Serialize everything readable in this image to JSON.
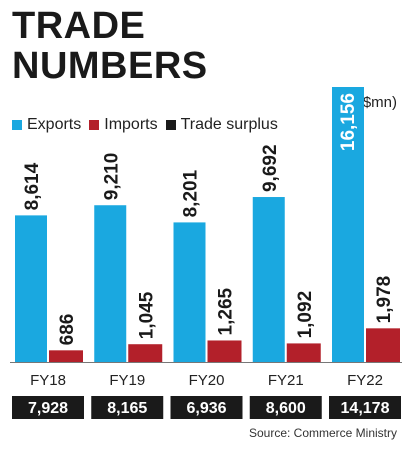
{
  "chart_data": {
    "type": "bar",
    "title": "TRADE NUMBERS",
    "title_lines": [
      "TRADE",
      "NUMBERS"
    ],
    "unit_note": "(In $mn)",
    "categories": [
      "FY18",
      "FY19",
      "FY20",
      "FY21",
      "FY22"
    ],
    "series": [
      {
        "name": "Exports",
        "values": [
          8614,
          9210,
          8201,
          9692,
          16156
        ],
        "labels": [
          "8,614",
          "9,210",
          "8,201",
          "9,692",
          "16,156"
        ],
        "color": "#1aa8e0"
      },
      {
        "name": "Imports",
        "values": [
          686,
          1045,
          1265,
          1092,
          1978
        ],
        "labels": [
          "686",
          "1,045",
          "1,265",
          "1,092",
          "1,978"
        ],
        "color": "#b3202a"
      },
      {
        "name": "Trade surplus",
        "values": [
          7928,
          8165,
          6936,
          8600,
          14178
        ],
        "labels": [
          "7,928",
          "8,165",
          "6,936",
          "8,600",
          "14,178"
        ],
        "color": "#1a1a1a"
      }
    ],
    "ylim": [
      0,
      16156
    ],
    "grid": false,
    "legend_position": "top-left",
    "source": "Source: Commerce Ministry"
  }
}
